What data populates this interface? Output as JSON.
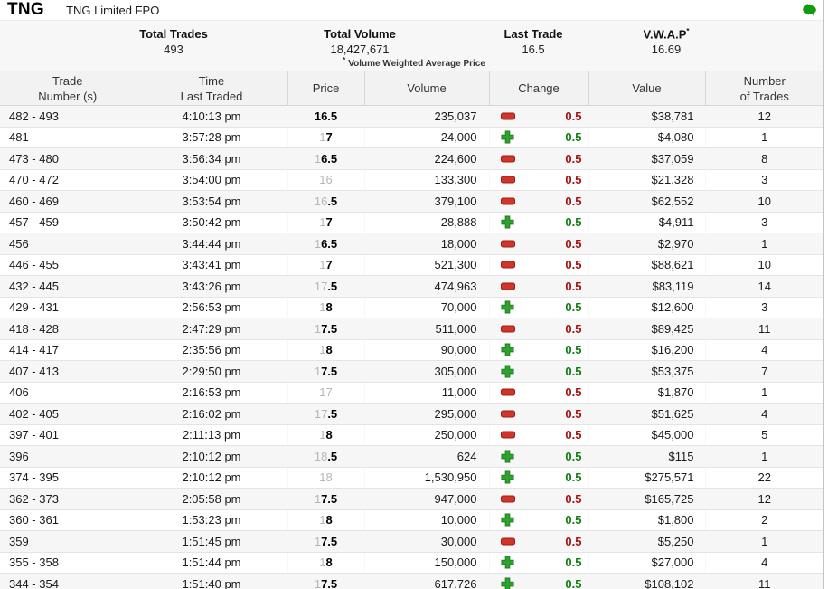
{
  "header": {
    "ticker": "TNG",
    "name": "TNG Limited FPO"
  },
  "colors": {
    "up_green": "#2fa12f",
    "up_green_dark": "#1d7a1d",
    "down_red": "#d0342a",
    "down_red_dark": "#9c1f12",
    "up_text": "#0e7c0e",
    "down_text": "#a31010",
    "brand_green": "#119b11"
  },
  "summary": {
    "total_trades_label": "Total Trades",
    "total_trades": "493",
    "total_volume_label": "Total Volume",
    "total_volume": "18,427,671",
    "last_trade_label": "Last Trade",
    "last_trade": "16.5",
    "vwap_label": "V.W.A.P",
    "vwap_sup": "*",
    "vwap": "16.69",
    "footnote_mark": "*",
    "footnote": "Volume Weighted Average Price"
  },
  "table": {
    "headers": [
      {
        "line1": "Trade",
        "line2": "Number (s)"
      },
      {
        "line1": "Time",
        "line2": "Last Traded"
      },
      {
        "line1": "Price",
        "line2": ""
      },
      {
        "line1": "Volume",
        "line2": ""
      },
      {
        "line1": "Change",
        "line2": ""
      },
      {
        "line1": "Value",
        "line2": ""
      },
      {
        "line1": "Number",
        "line2": "of Trades"
      }
    ],
    "rows": [
      {
        "trades": "482 - 493",
        "time": "4:10:13 pm",
        "price_grey": "",
        "price_bold": "16.5",
        "volume": "235,037",
        "dir": "down",
        "change": "0.5",
        "value": "$38,781",
        "count": "12"
      },
      {
        "trades": "481",
        "time": "3:57:28 pm",
        "price_grey": "1",
        "price_bold": "7",
        "volume": "24,000",
        "dir": "up",
        "change": "0.5",
        "value": "$4,080",
        "count": "1"
      },
      {
        "trades": "473 - 480",
        "time": "3:56:34 pm",
        "price_grey": "1",
        "price_bold": "6.5",
        "volume": "224,600",
        "dir": "down",
        "change": "0.5",
        "value": "$37,059",
        "count": "8"
      },
      {
        "trades": "470 - 472",
        "time": "3:54:00 pm",
        "price_grey": "16",
        "price_bold": "",
        "volume": "133,300",
        "dir": "down",
        "change": "0.5",
        "value": "$21,328",
        "count": "3"
      },
      {
        "trades": "460 - 469",
        "time": "3:53:54 pm",
        "price_grey": "16",
        "price_bold": ".5",
        "volume": "379,100",
        "dir": "down",
        "change": "0.5",
        "value": "$62,552",
        "count": "10"
      },
      {
        "trades": "457 - 459",
        "time": "3:50:42 pm",
        "price_grey": "1",
        "price_bold": "7",
        "volume": "28,888",
        "dir": "up",
        "change": "0.5",
        "value": "$4,911",
        "count": "3"
      },
      {
        "trades": "456",
        "time": "3:44:44 pm",
        "price_grey": "1",
        "price_bold": "6.5",
        "volume": "18,000",
        "dir": "down",
        "change": "0.5",
        "value": "$2,970",
        "count": "1"
      },
      {
        "trades": "446 - 455",
        "time": "3:43:41 pm",
        "price_grey": "1",
        "price_bold": "7",
        "volume": "521,300",
        "dir": "down",
        "change": "0.5",
        "value": "$88,621",
        "count": "10"
      },
      {
        "trades": "432 - 445",
        "time": "3:43:26 pm",
        "price_grey": "17",
        "price_bold": ".5",
        "volume": "474,963",
        "dir": "down",
        "change": "0.5",
        "value": "$83,119",
        "count": "14"
      },
      {
        "trades": "429 - 431",
        "time": "2:56:53 pm",
        "price_grey": "1",
        "price_bold": "8",
        "volume": "70,000",
        "dir": "up",
        "change": "0.5",
        "value": "$12,600",
        "count": "3"
      },
      {
        "trades": "418 - 428",
        "time": "2:47:29 pm",
        "price_grey": "1",
        "price_bold": "7.5",
        "volume": "511,000",
        "dir": "down",
        "change": "0.5",
        "value": "$89,425",
        "count": "11"
      },
      {
        "trades": "414 - 417",
        "time": "2:35:56 pm",
        "price_grey": "1",
        "price_bold": "8",
        "volume": "90,000",
        "dir": "up",
        "change": "0.5",
        "value": "$16,200",
        "count": "4"
      },
      {
        "trades": "407 - 413",
        "time": "2:29:50 pm",
        "price_grey": "1",
        "price_bold": "7.5",
        "volume": "305,000",
        "dir": "up",
        "change": "0.5",
        "value": "$53,375",
        "count": "7"
      },
      {
        "trades": "406",
        "time": "2:16:53 pm",
        "price_grey": "17",
        "price_bold": "",
        "volume": "11,000",
        "dir": "down",
        "change": "0.5",
        "value": "$1,870",
        "count": "1"
      },
      {
        "trades": "402 - 405",
        "time": "2:16:02 pm",
        "price_grey": "17",
        "price_bold": ".5",
        "volume": "295,000",
        "dir": "down",
        "change": "0.5",
        "value": "$51,625",
        "count": "4"
      },
      {
        "trades": "397 - 401",
        "time": "2:11:13 pm",
        "price_grey": "1",
        "price_bold": "8",
        "volume": "250,000",
        "dir": "down",
        "change": "0.5",
        "value": "$45,000",
        "count": "5"
      },
      {
        "trades": "396",
        "time": "2:10:12 pm",
        "price_grey": "18",
        "price_bold": ".5",
        "volume": "624",
        "dir": "up",
        "change": "0.5",
        "value": "$115",
        "count": "1"
      },
      {
        "trades": "374 - 395",
        "time": "2:10:12 pm",
        "price_grey": "18",
        "price_bold": "",
        "volume": "1,530,950",
        "dir": "up",
        "change": "0.5",
        "value": "$275,571",
        "count": "22"
      },
      {
        "trades": "362 - 373",
        "time": "2:05:58 pm",
        "price_grey": "1",
        "price_bold": "7.5",
        "volume": "947,000",
        "dir": "down",
        "change": "0.5",
        "value": "$165,725",
        "count": "12"
      },
      {
        "trades": "360 - 361",
        "time": "1:53:23 pm",
        "price_grey": "1",
        "price_bold": "8",
        "volume": "10,000",
        "dir": "up",
        "change": "0.5",
        "value": "$1,800",
        "count": "2"
      },
      {
        "trades": "359",
        "time": "1:51:45 pm",
        "price_grey": "1",
        "price_bold": "7.5",
        "volume": "30,000",
        "dir": "down",
        "change": "0.5",
        "value": "$5,250",
        "count": "1"
      },
      {
        "trades": "355 - 358",
        "time": "1:51:44 pm",
        "price_grey": "1",
        "price_bold": "8",
        "volume": "150,000",
        "dir": "up",
        "change": "0.5",
        "value": "$27,000",
        "count": "4"
      },
      {
        "trades": "344 - 354",
        "time": "1:51:40 pm",
        "price_grey": "1",
        "price_bold": "7.5",
        "volume": "617,726",
        "dir": "up",
        "change": "0.5",
        "value": "$108,102",
        "count": "11"
      }
    ]
  }
}
